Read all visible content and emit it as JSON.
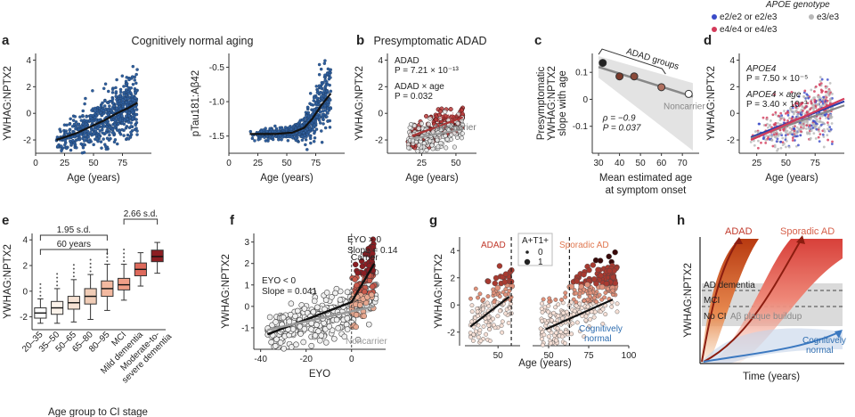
{
  "figure": {
    "panel_letters": [
      "a",
      "b",
      "c",
      "d",
      "e",
      "f",
      "g",
      "h"
    ]
  },
  "chart_data": [
    {
      "id": "a1",
      "type": "scatter",
      "title": "Cognitively normal aging",
      "xlabel": "Age (years)",
      "ylabel": "YWHAG:NPTX2",
      "xlim": [
        0,
        100
      ],
      "ylim": [
        -3,
        4.5
      ],
      "xticks": [
        "0",
        "25",
        "50",
        "75"
      ],
      "yticks": [
        "-2",
        "0",
        "2",
        "4"
      ],
      "trend": {
        "x": [
          18,
          35,
          50,
          60,
          70,
          80,
          88
        ],
        "y": [
          -2.0,
          -1.5,
          -0.9,
          -0.5,
          0.0,
          0.4,
          0.8
        ]
      },
      "color": "#2f5f9e"
    },
    {
      "id": "a2",
      "type": "scatter",
      "xlabel": "Age (years)",
      "ylabel": "pTau181:Aβ42",
      "xlim": [
        0,
        100
      ],
      "ylim": [
        -1.75,
        -0.3
      ],
      "xticks": [
        "0",
        "25",
        "50",
        "75"
      ],
      "yticks": [
        "-1.5",
        "-1.0",
        "-0.5"
      ],
      "trend": {
        "x": [
          18,
          40,
          55,
          65,
          72,
          80,
          88
        ],
        "y": [
          -1.47,
          -1.47,
          -1.45,
          -1.38,
          -1.25,
          -1.05,
          -0.88
        ]
      },
      "color": "#2f5f9e"
    },
    {
      "id": "b",
      "type": "scatter",
      "title": "Presymptomatic ADAD",
      "xlabel": "Age (years)",
      "ylabel": "YWHAG:NPTX2",
      "xlim": [
        0,
        65
      ],
      "ylim": [
        -3,
        4.5
      ],
      "xticks": [
        "25",
        "50"
      ],
      "yticks": [
        "-2",
        "0",
        "2",
        "4"
      ],
      "annotations": [
        "ADAD",
        "P = 7.21 × 10⁻¹³",
        "ADAD × age",
        "P = 0.032"
      ],
      "series": [
        {
          "name": "Carrier",
          "color": "#a83232",
          "trend_x": [
            18,
            55
          ],
          "trend_y": [
            -1.7,
            -0.3
          ]
        },
        {
          "name": "Noncarrier",
          "color": "#9a9a9a",
          "trend_x": [
            18,
            55
          ],
          "trend_y": [
            -1.9,
            -1.2
          ]
        }
      ]
    },
    {
      "id": "c",
      "type": "scatter",
      "xlabel": "Mean estimated age at symptom onset",
      "ylabel": "Presymptomatic YWHAG:NPTX2 slope with age",
      "xlim": [
        27,
        78
      ],
      "ylim": [
        -0.2,
        0.17
      ],
      "xticks": [
        "30",
        "40",
        "50",
        "60",
        "70"
      ],
      "yticks": [
        "-0.1",
        "0",
        "0.1"
      ],
      "x": [
        32,
        40,
        47,
        60,
        73
      ],
      "y": [
        0.135,
        0.085,
        0.085,
        0.045,
        0.02
      ],
      "point_colors": [
        "#222222",
        "#7a3a2a",
        "#8a4a3a",
        "#b07060",
        "#ffffff"
      ],
      "group_label": "ADAD groups",
      "noncarrier_label": "Noncarrier",
      "annotations": [
        "ρ = −0.9",
        "P = 0.037"
      ]
    },
    {
      "id": "d",
      "type": "scatter",
      "xlabel": "Age (years)",
      "ylabel": "YWHAG:NPTX2",
      "xlim": [
        10,
        100
      ],
      "ylim": [
        -3,
        4.5
      ],
      "xticks": [
        "25",
        "50",
        "75"
      ],
      "yticks": [
        "-2",
        "0",
        "2",
        "4"
      ],
      "legend_title": "APOE genotype",
      "legend": [
        {
          "name": "e2/e2 or e2/e3",
          "color": "#3b4bc8"
        },
        {
          "name": "e3/e3",
          "color": "#b8b8b8"
        },
        {
          "name": "e4/e4 or e4/e3",
          "color": "#d33a5a"
        }
      ],
      "annotations": [
        "APOE4",
        "P = 7.50 × 10⁻⁵",
        "APOE4 × age",
        "P = 3.40 × 10⁻³"
      ]
    },
    {
      "id": "e",
      "type": "box",
      "xlabel": "Age group to CI stage",
      "ylabel": "YWHAG:NPTX2",
      "ylim": [
        -3,
        4.5
      ],
      "yticks": [
        "-2",
        "0",
        "2",
        "4"
      ],
      "categories": [
        "20–35",
        "35–50",
        "50–65",
        "65–80",
        "80–95",
        "MCI",
        "Mild dementia",
        "Moderate-to-severe dementia"
      ],
      "medians": [
        -1.7,
        -1.3,
        -0.9,
        -0.4,
        0.2,
        0.5,
        1.7,
        2.7
      ],
      "q1": [
        -2.1,
        -1.8,
        -1.4,
        -1.0,
        -0.4,
        0.1,
        1.2,
        2.3
      ],
      "q3": [
        -1.3,
        -0.8,
        -0.4,
        0.2,
        0.8,
        1.0,
        2.2,
        3.2
      ],
      "whisker_low": [
        -2.5,
        -2.5,
        -2.4,
        -2.2,
        -1.5,
        -0.7,
        0.4,
        1.4
      ],
      "whisker_high": [
        -0.6,
        0.2,
        0.9,
        1.3,
        2.1,
        2.1,
        3.0,
        3.8
      ],
      "colors": [
        "#ffffff",
        "#fbf2ea",
        "#f6e2d4",
        "#f0ccb6",
        "#f3b9a0",
        "#ef9e86",
        "#de6a5c",
        "#8c1d22"
      ],
      "brackets": [
        {
          "label": "1.95 s.d."
        },
        {
          "label": "2.66 s.d."
        },
        {
          "label": "60 years"
        }
      ]
    },
    {
      "id": "f",
      "type": "scatter",
      "xlabel": "EYO",
      "ylabel": "YWHAG:NPTX2",
      "xlim": [
        -43,
        15
      ],
      "ylim": [
        -2,
        3.4
      ],
      "xticks": [
        "-40",
        "-20",
        "0"
      ],
      "yticks": [
        "-1",
        "0",
        "1",
        "2",
        "3"
      ],
      "annotations": [
        "EYO < 0",
        "Slope = 0.041",
        "EYO > 0",
        "Slope = 0.14"
      ],
      "series": [
        {
          "name": "Carrier",
          "color": "#222222",
          "trend_x": [
            -37,
            0,
            10
          ],
          "trend_y": [
            -1.3,
            0.2,
            2.0
          ]
        },
        {
          "name": "Noncarrier",
          "color": "#9a9a9a",
          "trend_x": [
            -37,
            10
          ],
          "trend_y": [
            -1.1,
            0.0
          ]
        }
      ]
    },
    {
      "id": "g",
      "type": "scatter",
      "xlabel": "Age (years)",
      "ylabel": "YWHAG:NPTX2",
      "ylim": [
        -3,
        5
      ],
      "yticks": [
        "-2",
        "0",
        "2",
        "4"
      ],
      "groups": [
        {
          "name": "ADAD",
          "xlim": [
            20,
            70
          ],
          "xticks": [
            "50"
          ],
          "vline": 62,
          "trend_x": [
            25,
            60
          ],
          "trend_y": [
            -1.6,
            0.6
          ],
          "color": "#c0392b"
        },
        {
          "name": "Sporadic AD",
          "xlim": [
            40,
            100
          ],
          "xticks": [
            "50",
            "75",
            "100"
          ],
          "vline": 63,
          "trend_x": [
            48,
            90
          ],
          "trend_y": [
            -1.8,
            0.4
          ],
          "color": "#e07850"
        }
      ],
      "legend_title": "A+T1+",
      "legend": [
        "0",
        "1"
      ],
      "cn_label": "Cognitively normal"
    },
    {
      "id": "h",
      "type": "schematic",
      "xlabel": "Time (years)",
      "ylabel": "YWHAG:NPTX2",
      "curves": [
        "ADAD",
        "Sporadic AD",
        "Cognitively normal"
      ],
      "stages": [
        "AD dementia",
        "MCI",
        "No CI"
      ],
      "band_label": "Aβ plaque buildup"
    }
  ]
}
